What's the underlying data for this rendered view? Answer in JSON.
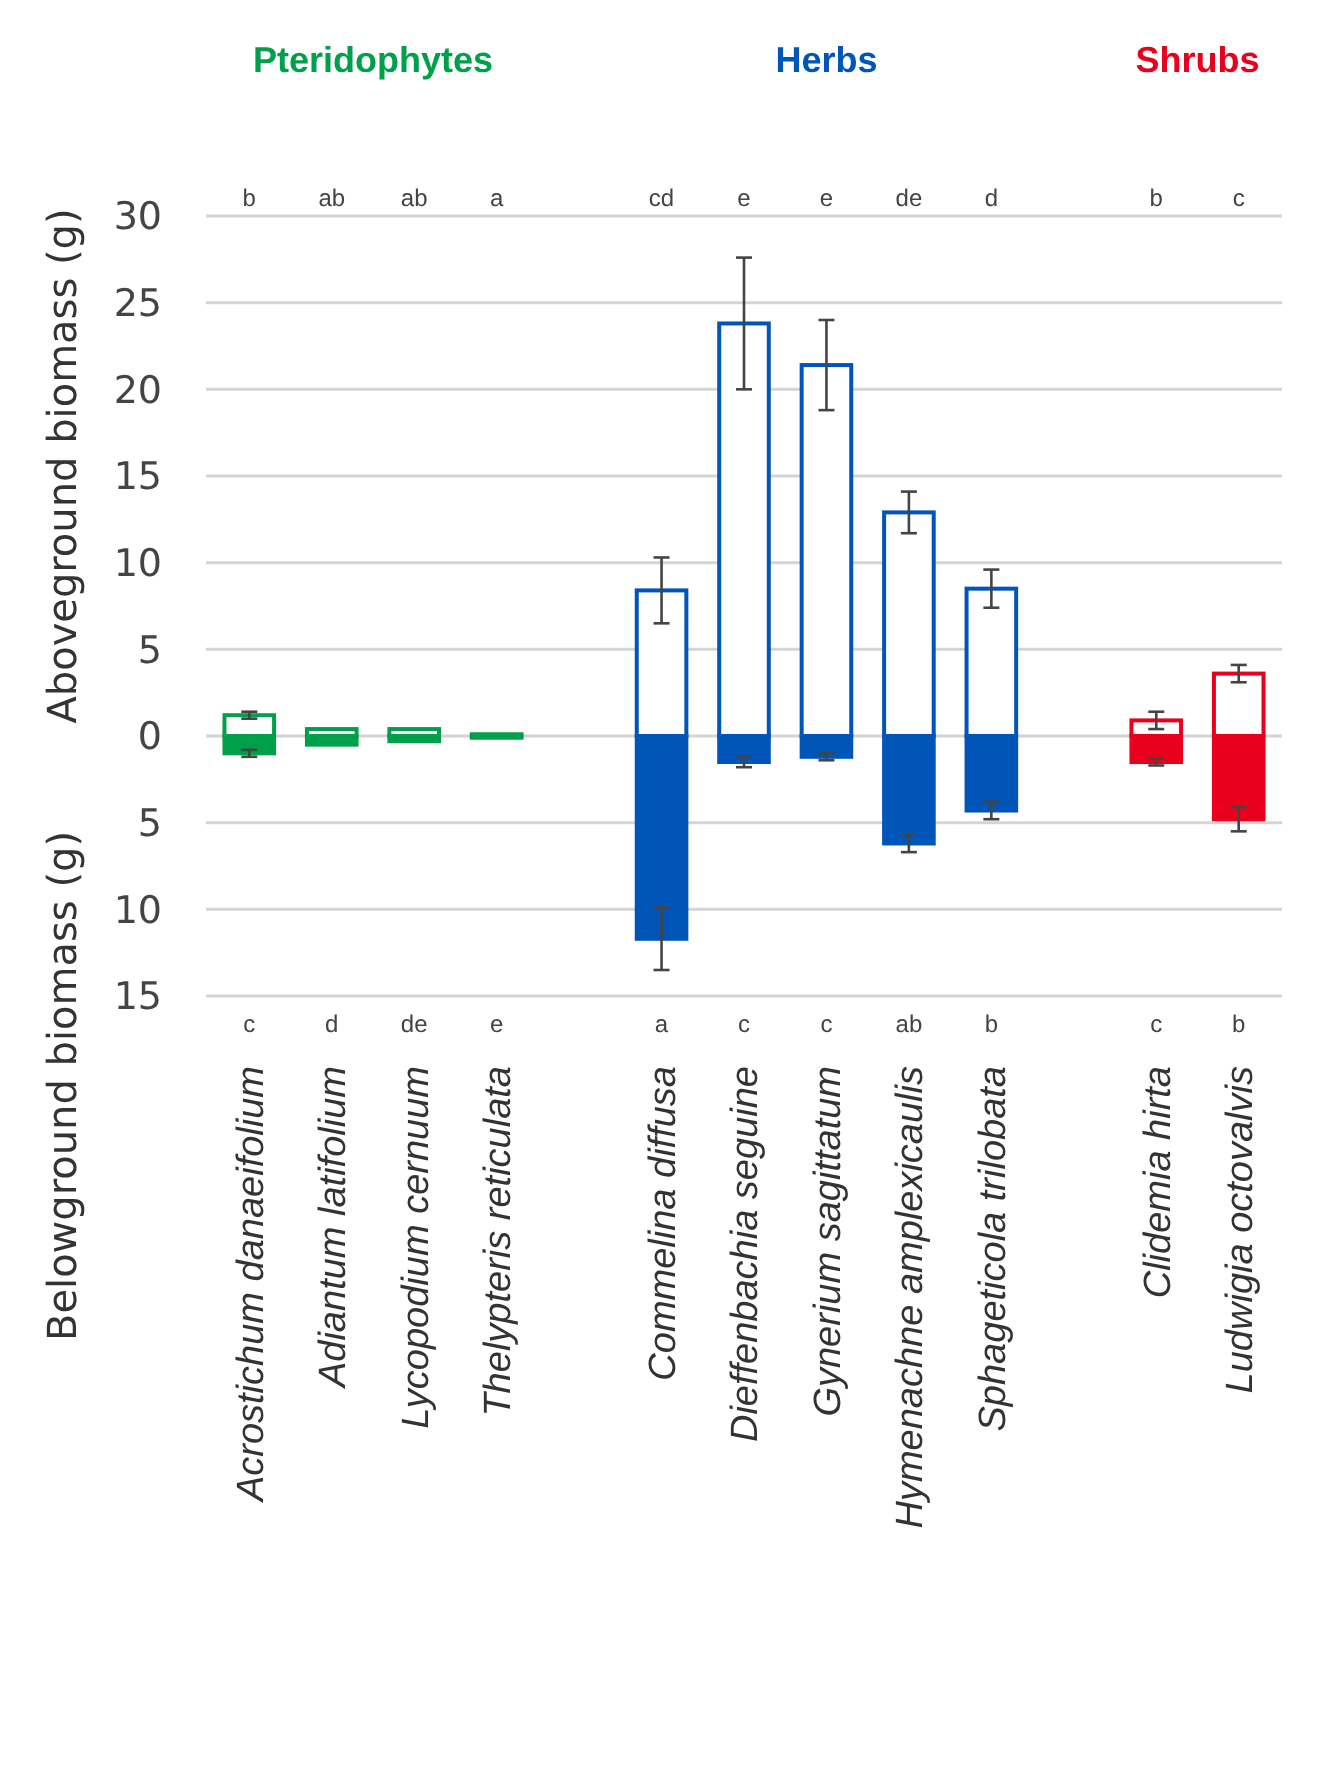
{
  "chart_data": {
    "type": "bar",
    "stacked": true,
    "ylabel": "Aboveground biomass (g)",
    "y2label": "Belowground biomass (g)",
    "categories": [
      "Acrostichum danaeifolium",
      "Adiantum latifolium",
      "Lycopodium cernuum",
      "Thelypteris reticulata",
      null,
      "Commelina diffusa",
      "Dieffenbachia seguine",
      "Gynerium sagittatum",
      "Hymenachne amplexicaulis",
      "Sphageticola trilobata",
      null,
      "Clidemia hirta",
      "Ludwigia octovalvis"
    ],
    "series": [
      {
        "colors": [
          "#00a04a",
          "#00a04a",
          "#00a04a",
          "#00a04a",
          null,
          "#0055b8",
          "#0055b8",
          "#0055b8",
          "#0055b8",
          "#0055b8",
          null,
          "#e8001c",
          "#e8001c"
        ],
        "values": [
          1.2,
          0.4,
          0.4,
          0.1,
          null,
          8.4,
          23.8,
          21.4,
          12.9,
          8.5,
          null,
          0.9,
          3.6
        ],
        "errors": [
          0.2,
          null,
          null,
          null,
          null,
          1.9,
          3.8,
          2.6,
          1.2,
          1.1,
          null,
          0.5,
          0.5
        ]
      },
      {
        "colors": [
          "#00a04a",
          "#00a04a",
          "#00a04a",
          "#00a04a",
          null,
          "#0055b8",
          "#0055b8",
          "#0055b8",
          "#0055b8",
          "#0055b8",
          null,
          "#e8001c",
          "#e8001c"
        ],
        "values": [
          -1.0,
          -0.5,
          -0.3,
          -0.1,
          null,
          -11.7,
          -1.5,
          -1.2,
          -6.2,
          -4.3,
          null,
          -1.5,
          -4.8
        ],
        "errors": [
          0.2,
          null,
          null,
          null,
          null,
          1.8,
          0.3,
          0.2,
          0.5,
          0.5,
          null,
          0.2,
          0.7
        ]
      }
    ],
    "ylim": [
      -15,
      30
    ],
    "yticks": [
      {
        "value": -15,
        "label": "15"
      },
      {
        "value": -10,
        "label": "10"
      },
      {
        "value": -5,
        "label": "5"
      },
      0,
      5,
      10,
      15,
      20,
      25,
      30
    ],
    "grid": "y",
    "annotations": [
      "Pteridophytes",
      "Herbs",
      "Shrubs",
      "b",
      "ab",
      "ab",
      "a",
      "cd",
      "e",
      "e",
      "de",
      "d",
      "b",
      "c",
      "c",
      "d",
      "de",
      "e",
      "a",
      "c",
      "c",
      "ab",
      "b",
      "c",
      "b"
    ]
  }
}
